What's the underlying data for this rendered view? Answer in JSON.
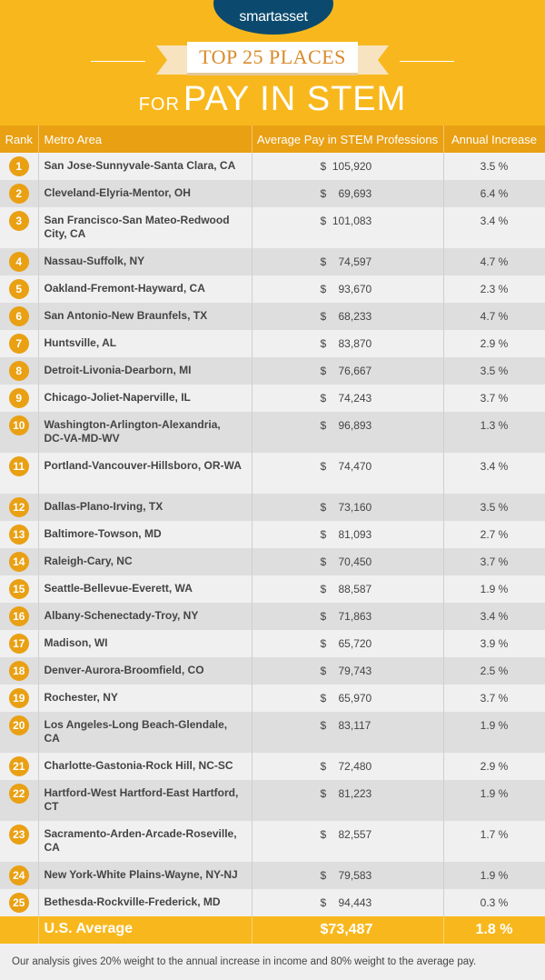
{
  "brand": "smartasset",
  "title": "TOP 25 PLACES",
  "subtitle_prefix": "FOR",
  "subtitle": "PAY IN STEM",
  "colors": {
    "header": "#f8b81d",
    "table_header": "#e9a013",
    "logo": "#0b4a6e"
  },
  "columns": [
    "Rank",
    "Metro Area",
    "Average Pay in STEM Professions",
    "Annual Increase"
  ],
  "rows": [
    {
      "rank": "1",
      "metro": "San Jose-Sunnyvale-Santa Clara, CA",
      "pay": "$  105,920",
      "inc": "3.5 %"
    },
    {
      "rank": "2",
      "metro": "Cleveland-Elyria-Mentor, OH",
      "pay": "$    69,693",
      "inc": "6.4 %"
    },
    {
      "rank": "3",
      "metro": "San Francisco-San Mateo-Redwood City, CA",
      "pay": "$  101,083",
      "inc": "3.4 %"
    },
    {
      "rank": "4",
      "metro": "Nassau-Suffolk, NY",
      "pay": "$    74,597",
      "inc": "4.7 %"
    },
    {
      "rank": "5",
      "metro": "Oakland-Fremont-Hayward, CA",
      "pay": "$    93,670",
      "inc": "2.3 %"
    },
    {
      "rank": "6",
      "metro": "San Antonio-New Braunfels, TX",
      "pay": "$    68,233",
      "inc": "4.7 %"
    },
    {
      "rank": "7",
      "metro": "Huntsville, AL",
      "pay": "$    83,870",
      "inc": "2.9 %"
    },
    {
      "rank": "8",
      "metro": "Detroit-Livonia-Dearborn, MI",
      "pay": "$    76,667",
      "inc": "3.5 %"
    },
    {
      "rank": "9",
      "metro": "Chicago-Joliet-Naperville, IL",
      "pay": "$    74,243",
      "inc": "3.7 %"
    },
    {
      "rank": "10",
      "metro": "Washington-Arlington-Alexandria, DC-VA-MD-WV",
      "pay": "$    96,893",
      "inc": "1.3 %"
    },
    {
      "rank": "11",
      "metro": "Portland-Vancouver-Hillsboro, OR-WA",
      "pay": "$    74,470",
      "inc": "3.4 %"
    },
    {
      "rank": "12",
      "metro": "Dallas-Plano-Irving, TX",
      "pay": "$    73,160",
      "inc": "3.5 %"
    },
    {
      "rank": "13",
      "metro": "Baltimore-Towson, MD",
      "pay": "$    81,093",
      "inc": "2.7 %"
    },
    {
      "rank": "14",
      "metro": "Raleigh-Cary, NC",
      "pay": "$    70,450",
      "inc": "3.7 %"
    },
    {
      "rank": "15",
      "metro": "Seattle-Bellevue-Everett, WA",
      "pay": "$    88,587",
      "inc": "1.9 %"
    },
    {
      "rank": "16",
      "metro": "Albany-Schenectady-Troy, NY",
      "pay": "$    71,863",
      "inc": "3.4 %"
    },
    {
      "rank": "17",
      "metro": "Madison, WI",
      "pay": "$    65,720",
      "inc": "3.9 %"
    },
    {
      "rank": "18",
      "metro": "Denver-Aurora-Broomfield, CO",
      "pay": "$    79,743",
      "inc": "2.5 %"
    },
    {
      "rank": "19",
      "metro": "Rochester, NY",
      "pay": "$    65,970",
      "inc": "3.7 %"
    },
    {
      "rank": "20",
      "metro": "Los Angeles-Long Beach-Glendale, CA",
      "pay": "$    83,117",
      "inc": "1.9 %"
    },
    {
      "rank": "21",
      "metro": "Charlotte-Gastonia-Rock Hill, NC-SC",
      "pay": "$    72,480",
      "inc": "2.9 %"
    },
    {
      "rank": "22",
      "metro": "Hartford-West Hartford-East Hartford, CT",
      "pay": "$    81,223",
      "inc": "1.9 %"
    },
    {
      "rank": "23",
      "metro": "Sacramento-Arden-Arcade-Roseville, CA",
      "pay": "$    82,557",
      "inc": "1.7 %"
    },
    {
      "rank": "24",
      "metro": "New York-White Plains-Wayne, NY-NJ",
      "pay": "$    79,583",
      "inc": "1.9 %"
    },
    {
      "rank": "25",
      "metro": "Bethesda-Rockville-Frederick, MD",
      "pay": "$    94,443",
      "inc": "0.3 %"
    }
  ],
  "average": {
    "label": "U.S. Average",
    "pay": "$73,487",
    "inc": "1.8 %"
  },
  "note": "Our analysis gives 20% weight to the annual increase in income and 80% weight to the average pay."
}
